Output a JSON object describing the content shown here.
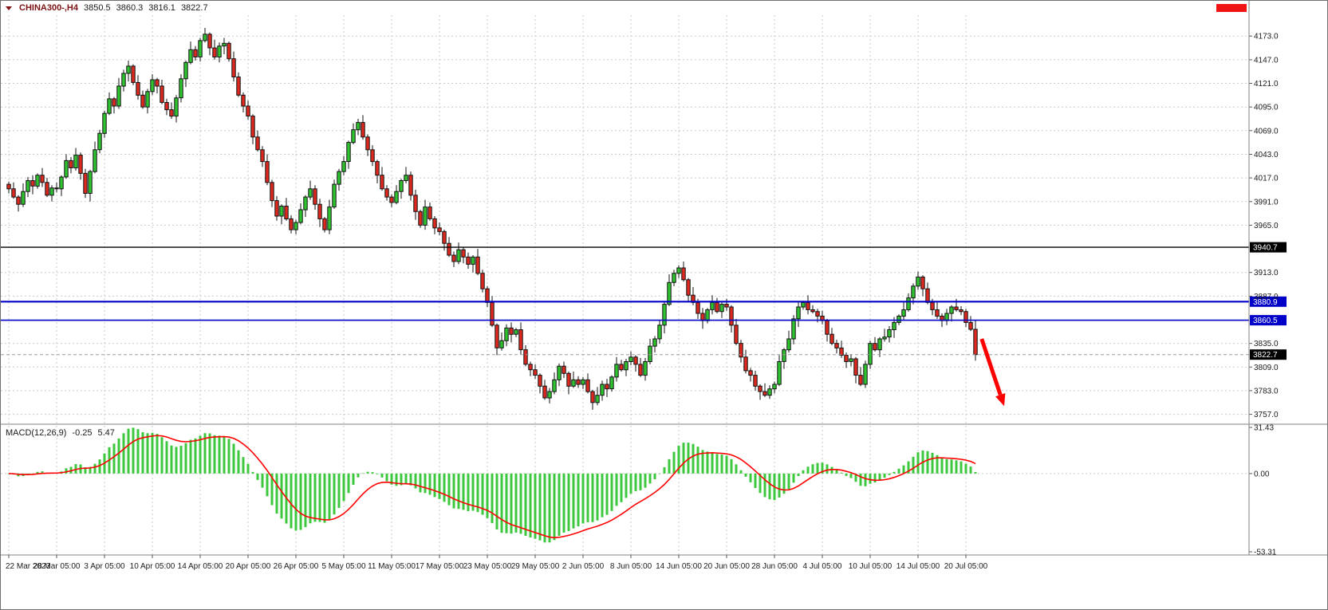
{
  "header": {
    "symbol": "CHINA300-,H4",
    "open": "3850.5",
    "high": "3860.3",
    "low": "3816.1",
    "close": "3822.7"
  },
  "colors": {
    "background": "#FFFFFF",
    "grid": "#C9C9C9",
    "up_candle": "#2FC42F",
    "down_candle": "#DE2A1E",
    "candle_outline": "#101010",
    "macd_histogram": "#3CC83C",
    "macd_signal": "#FF0000",
    "axis_text": "#1A1A1A",
    "separator": "#808080",
    "symbol_text": "#7B1113",
    "arrow": "#FF0000",
    "marker_red": "#F01414"
  },
  "chart_data": {
    "type": "candlestick",
    "title": "CHINA300- H4 candlestick chart with MACD(12,26,9) sub-panel",
    "x_axis": {
      "labels": [
        "22 Mar 2023",
        "28 Mar 05:00",
        "3 Apr 05:00",
        "10 Apr 05:00",
        "14 Apr 05:00",
        "20 Apr 05:00",
        "26 Apr 05:00",
        "5 May 05:00",
        "11 May 05:00",
        "17 May 05:00",
        "23 May 05:00",
        "29 May 05:00",
        "2 Jun 05:00",
        "8 Jun 05:00",
        "14 Jun 05:00",
        "20 Jun 05:00",
        "28 Jun 05:00",
        "4 Jul 05:00",
        "10 Jul 05:00",
        "14 Jul 05:00",
        "20 Jul 05:00"
      ],
      "candles_per_label": 10
    },
    "y_axis": {
      "ticks": [
        4173.0,
        4147.0,
        4121.0,
        4095.0,
        4069.0,
        4043.0,
        4017.0,
        3991.0,
        3965.0,
        3913.0,
        3887.0,
        3835.0,
        3809.0,
        3783.0,
        3757.0
      ],
      "visible_range": [
        3747,
        4196
      ]
    },
    "candles": {
      "first_open": 4010,
      "closes": [
        4005,
        3996,
        3988,
        4002,
        4014,
        4008,
        4020,
        4012,
        3998,
        4006,
        4005,
        4018,
        4036,
        4028,
        4042,
        4022,
        4000,
        4024,
        4048,
        4066,
        4088,
        4104,
        4096,
        4118,
        4132,
        4140,
        4122,
        4108,
        4095,
        4112,
        4125,
        4118,
        4100,
        4092,
        4085,
        4105,
        4126,
        4144,
        4158,
        4150,
        4168,
        4175,
        4160,
        4150,
        4162,
        4165,
        4148,
        4128,
        4108,
        4096,
        4085,
        4062,
        4048,
        4035,
        4012,
        3992,
        3975,
        3986,
        3972,
        3960,
        3968,
        3982,
        3996,
        4005,
        3988,
        3972,
        3960,
        3985,
        4010,
        4024,
        4035,
        4056,
        4070,
        4078,
        4062,
        4048,
        4035,
        4020,
        4005,
        3996,
        3990,
        4002,
        4014,
        4020,
        3998,
        3980,
        3965,
        3985,
        3972,
        3962,
        3958,
        3945,
        3932,
        3925,
        3938,
        3930,
        3922,
        3930,
        3912,
        3895,
        3880,
        3855,
        3830,
        3838,
        3852,
        3845,
        3850,
        3828,
        3812,
        3806,
        3800,
        3788,
        3775,
        3782,
        3795,
        3810,
        3802,
        3788,
        3795,
        3790,
        3795,
        3782,
        3770,
        3778,
        3790,
        3785,
        3798,
        3812,
        3806,
        3815,
        3820,
        3812,
        3800,
        3815,
        3832,
        3840,
        3855,
        3878,
        3902,
        3912,
        3918,
        3905,
        3888,
        3880,
        3868,
        3860,
        3872,
        3880,
        3870,
        3878,
        3875,
        3855,
        3835,
        3820,
        3805,
        3800,
        3788,
        3782,
        3778,
        3785,
        3790,
        3815,
        3828,
        3840,
        3862,
        3875,
        3880,
        3872,
        3870,
        3865,
        3860,
        3845,
        3835,
        3830,
        3822,
        3815,
        3818,
        3800,
        3790,
        3812,
        3835,
        3828,
        3840,
        3842,
        3850,
        3858,
        3865,
        3872,
        3885,
        3898,
        3908,
        3895,
        3880,
        3872,
        3865,
        3860,
        3868,
        3875,
        3872,
        3870,
        3858,
        3850.5,
        3822.7
      ],
      "wick_high_pattern": [
        3,
        7,
        2,
        9,
        4,
        6,
        2,
        8,
        5,
        3,
        6,
        2,
        7,
        4,
        8,
        3,
        5,
        2,
        9,
        4
      ],
      "wick_low_pattern": [
        5,
        2,
        8,
        3,
        6,
        9,
        3,
        5,
        2,
        7,
        4,
        8,
        2,
        6,
        3,
        7,
        5,
        9,
        2,
        4
      ],
      "last_candle": {
        "open": 3850.5,
        "high": 3860.3,
        "low": 3816.1,
        "close": 3822.7
      }
    },
    "horizontal_lines": [
      {
        "name": "hline-3940-7",
        "price": 3940.7,
        "label": "3940.7",
        "line_color": "#000000",
        "line_width": 1.4,
        "line_style": "solid",
        "box_bg": "#000000",
        "box_fg": "#FFFFFF"
      },
      {
        "name": "hline-3880-9",
        "price": 3880.9,
        "label": "3880.9",
        "line_color": "#0000C8",
        "line_width": 2.2,
        "line_style": "solid",
        "box_bg": "#0000C8",
        "box_fg": "#FFFFFF"
      },
      {
        "name": "hline-3860-5",
        "price": 3860.5,
        "label": "3860.5",
        "line_color": "#0000C8",
        "line_width": 1.6,
        "line_style": "solid",
        "box_bg": "#0000C8",
        "box_fg": "#FFFFFF"
      },
      {
        "name": "bid-price-line",
        "price": 3822.7,
        "label": "3822.7",
        "line_color": "#9A9A9A",
        "line_width": 1,
        "line_style": "dashed",
        "box_bg": "#000000",
        "box_fg": "#FFFFFF"
      }
    ],
    "macd": {
      "label": "MACD(12,26,9)",
      "fast": 12,
      "slow": 26,
      "signal_period": 9,
      "value_macd": "-0.25",
      "value_signal": "5.47",
      "scale": {
        "max": 31.43,
        "min": -53.31
      },
      "scale_labels": [
        "31.43",
        "0.00",
        "-53.31"
      ]
    },
    "annotations": {
      "arrow": {
        "shape": "down-right-arrow",
        "color": "#FF0000",
        "from_index": 203.3,
        "from_price": 3840,
        "to_index": 208,
        "to_price": 3766
      }
    }
  }
}
